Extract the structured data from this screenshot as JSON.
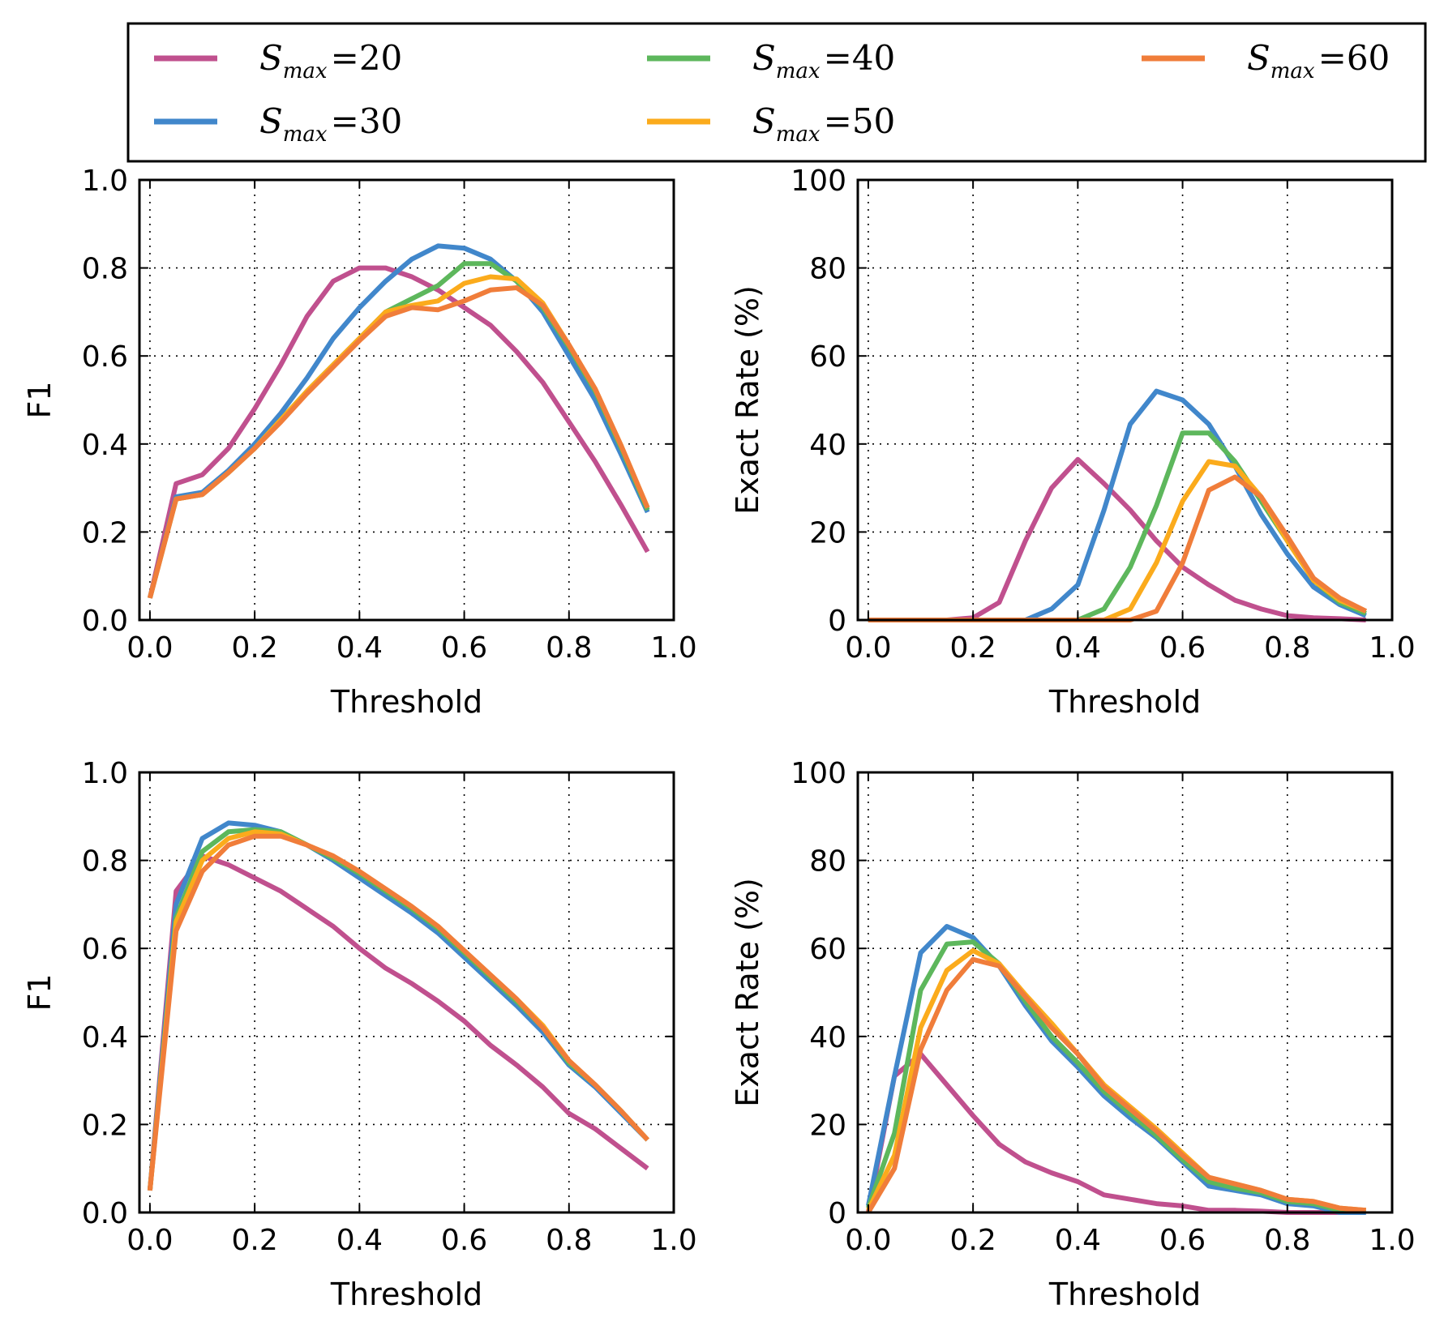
{
  "legend": {
    "items": [
      {
        "symbol": "S",
        "sub": "max",
        "value": "20",
        "color": "#c0508e"
      },
      {
        "symbol": "S",
        "sub": "max",
        "value": "30",
        "color": "#4187cb"
      },
      {
        "symbol": "S",
        "sub": "max",
        "value": "40",
        "color": "#5db75c"
      },
      {
        "symbol": "S",
        "sub": "max",
        "value": "50",
        "color": "#fbab1c"
      },
      {
        "symbol": "S",
        "sub": "max",
        "value": "60",
        "color": "#f07d3a"
      }
    ]
  },
  "chart_data": [
    {
      "type": "line",
      "xlabel": "Threshold",
      "ylabel": "F1",
      "xlim": [
        -0.02,
        1.0
      ],
      "ylim": [
        0.0,
        1.0
      ],
      "xticks": [
        "0.0",
        "0.2",
        "0.4",
        "0.6",
        "0.8",
        "1.0"
      ],
      "yticks": [
        "0.0",
        "0.2",
        "0.4",
        "0.6",
        "0.8",
        "1.0"
      ],
      "grid": true,
      "x": [
        0.0,
        0.05,
        0.1,
        0.15,
        0.2,
        0.25,
        0.3,
        0.35,
        0.4,
        0.45,
        0.5,
        0.55,
        0.6,
        0.65,
        0.7,
        0.75,
        0.8,
        0.85,
        0.9,
        0.95
      ],
      "series": [
        {
          "name": "S_max=20",
          "values": [
            0.05,
            0.31,
            0.33,
            0.39,
            0.48,
            0.58,
            0.69,
            0.77,
            0.8,
            0.8,
            0.78,
            0.75,
            0.71,
            0.67,
            0.61,
            0.54,
            0.45,
            0.36,
            0.26,
            0.155
          ]
        },
        {
          "name": "S_max=30",
          "values": [
            0.05,
            0.28,
            0.29,
            0.34,
            0.4,
            0.47,
            0.55,
            0.64,
            0.71,
            0.77,
            0.82,
            0.85,
            0.845,
            0.82,
            0.77,
            0.7,
            0.6,
            0.5,
            0.375,
            0.245
          ]
        },
        {
          "name": "S_max=40",
          "values": [
            0.05,
            0.275,
            0.285,
            0.335,
            0.39,
            0.455,
            0.52,
            0.58,
            0.64,
            0.7,
            0.73,
            0.76,
            0.81,
            0.81,
            0.77,
            0.71,
            0.62,
            0.52,
            0.39,
            0.25
          ]
        },
        {
          "name": "S_max=50",
          "values": [
            0.05,
            0.275,
            0.285,
            0.335,
            0.39,
            0.455,
            0.52,
            0.58,
            0.64,
            0.7,
            0.715,
            0.725,
            0.765,
            0.78,
            0.775,
            0.72,
            0.625,
            0.525,
            0.395,
            0.255
          ]
        },
        {
          "name": "S_max=60",
          "values": [
            0.05,
            0.275,
            0.285,
            0.335,
            0.39,
            0.45,
            0.515,
            0.575,
            0.635,
            0.69,
            0.71,
            0.705,
            0.725,
            0.75,
            0.755,
            0.715,
            0.625,
            0.525,
            0.395,
            0.255
          ]
        }
      ]
    },
    {
      "type": "line",
      "xlabel": "Threshold",
      "ylabel": "Exact Rate (%)",
      "xlim": [
        -0.02,
        1.0
      ],
      "ylim": [
        0,
        100
      ],
      "xticks": [
        "0.0",
        "0.2",
        "0.4",
        "0.6",
        "0.8",
        "1.0"
      ],
      "yticks": [
        "0",
        "20",
        "40",
        "60",
        "80",
        "100"
      ],
      "grid": true,
      "x": [
        0.0,
        0.05,
        0.1,
        0.15,
        0.2,
        0.25,
        0.3,
        0.35,
        0.4,
        0.45,
        0.5,
        0.55,
        0.6,
        0.65,
        0.7,
        0.75,
        0.8,
        0.85,
        0.9,
        0.95
      ],
      "series": [
        {
          "name": "S_max=20",
          "values": [
            0,
            0,
            0,
            0,
            0.5,
            4,
            18,
            30,
            36.5,
            31,
            25,
            18,
            12,
            8,
            4.5,
            2.5,
            1,
            0.5,
            0.3,
            0
          ]
        },
        {
          "name": "S_max=30",
          "values": [
            0,
            0,
            0,
            0,
            0,
            0,
            0,
            2.5,
            8,
            25,
            44.5,
            52,
            50,
            44.5,
            35,
            24,
            15,
            7.5,
            3.5,
            1
          ]
        },
        {
          "name": "S_max=40",
          "values": [
            0,
            0,
            0,
            0,
            0,
            0,
            0,
            0,
            0,
            2.5,
            12,
            26,
            42.5,
            42.5,
            36,
            27,
            18,
            9,
            4,
            1.5
          ]
        },
        {
          "name": "S_max=50",
          "values": [
            0,
            0,
            0,
            0,
            0,
            0,
            0,
            0,
            0,
            0,
            2.5,
            13,
            27,
            36,
            35,
            28,
            18,
            9,
            4.5,
            2
          ]
        },
        {
          "name": "S_max=60",
          "values": [
            0,
            0,
            0,
            0,
            0,
            0,
            0,
            0,
            0,
            0,
            0,
            2,
            13,
            29.5,
            32.5,
            28,
            19,
            9.5,
            5,
            2
          ]
        }
      ]
    },
    {
      "type": "line",
      "xlabel": "Threshold",
      "ylabel": "F1",
      "xlim": [
        -0.02,
        1.0
      ],
      "ylim": [
        0.0,
        1.0
      ],
      "xticks": [
        "0.0",
        "0.2",
        "0.4",
        "0.6",
        "0.8",
        "1.0"
      ],
      "yticks": [
        "0.0",
        "0.2",
        "0.4",
        "0.6",
        "0.8",
        "1.0"
      ],
      "grid": true,
      "x": [
        0.0,
        0.05,
        0.1,
        0.15,
        0.2,
        0.25,
        0.3,
        0.35,
        0.4,
        0.45,
        0.5,
        0.55,
        0.6,
        0.65,
        0.7,
        0.75,
        0.8,
        0.85,
        0.9,
        0.95
      ],
      "series": [
        {
          "name": "S_max=20",
          "values": [
            0.05,
            0.73,
            0.81,
            0.79,
            0.76,
            0.73,
            0.69,
            0.65,
            0.6,
            0.555,
            0.52,
            0.48,
            0.435,
            0.38,
            0.335,
            0.285,
            0.225,
            0.19,
            0.145,
            0.1
          ]
        },
        {
          "name": "S_max=30",
          "values": [
            0.05,
            0.7,
            0.85,
            0.885,
            0.88,
            0.865,
            0.835,
            0.8,
            0.76,
            0.72,
            0.68,
            0.635,
            0.58,
            0.525,
            0.47,
            0.41,
            0.335,
            0.285,
            0.225,
            0.165
          ]
        },
        {
          "name": "S_max=40",
          "values": [
            0.05,
            0.67,
            0.82,
            0.865,
            0.87,
            0.865,
            0.835,
            0.805,
            0.77,
            0.73,
            0.69,
            0.645,
            0.59,
            0.535,
            0.48,
            0.42,
            0.34,
            0.29,
            0.23,
            0.165
          ]
        },
        {
          "name": "S_max=50",
          "values": [
            0.05,
            0.66,
            0.8,
            0.85,
            0.865,
            0.86,
            0.835,
            0.81,
            0.775,
            0.735,
            0.695,
            0.65,
            0.595,
            0.54,
            0.485,
            0.425,
            0.345,
            0.29,
            0.23,
            0.165
          ]
        },
        {
          "name": "S_max=60",
          "values": [
            0.05,
            0.64,
            0.775,
            0.835,
            0.855,
            0.855,
            0.835,
            0.81,
            0.775,
            0.735,
            0.695,
            0.65,
            0.595,
            0.54,
            0.485,
            0.42,
            0.345,
            0.29,
            0.23,
            0.165
          ]
        }
      ]
    },
    {
      "type": "line",
      "xlabel": "Threshold",
      "ylabel": "Exact Rate (%)",
      "xlim": [
        -0.02,
        1.0
      ],
      "ylim": [
        0,
        100
      ],
      "xticks": [
        "0.0",
        "0.2",
        "0.4",
        "0.6",
        "0.8",
        "1.0"
      ],
      "yticks": [
        "0",
        "20",
        "40",
        "60",
        "80",
        "100"
      ],
      "grid": true,
      "x": [
        0.0,
        0.05,
        0.1,
        0.15,
        0.2,
        0.25,
        0.3,
        0.35,
        0.4,
        0.45,
        0.5,
        0.55,
        0.6,
        0.65,
        0.7,
        0.75,
        0.8,
        0.85,
        0.9,
        0.95
      ],
      "series": [
        {
          "name": "S_max=20",
          "values": [
            0,
            31,
            36,
            29,
            22,
            15.5,
            11.5,
            9,
            7,
            4,
            3,
            2,
            1.5,
            0.5,
            0.5,
            0.3,
            0,
            0,
            0,
            0
          ]
        },
        {
          "name": "S_max=30",
          "values": [
            1.5,
            31,
            59,
            65,
            62.5,
            56,
            47,
            39,
            33,
            26.5,
            21.5,
            17,
            11.5,
            6,
            5,
            4,
            2,
            1.5,
            0,
            0
          ]
        },
        {
          "name": "S_max=40",
          "values": [
            1,
            18,
            50.5,
            61,
            61.5,
            56.5,
            48,
            40,
            34,
            27.5,
            22.5,
            17.5,
            12,
            7,
            5.5,
            4.5,
            2.5,
            2,
            0.5,
            0.5
          ]
        },
        {
          "name": "S_max=50",
          "values": [
            0.5,
            13,
            42,
            55,
            59.5,
            56.5,
            49.5,
            43,
            36,
            29,
            24,
            19,
            13.5,
            8,
            6.5,
            5,
            3,
            2.5,
            1,
            0.5
          ]
        },
        {
          "name": "S_max=60",
          "values": [
            0,
            10,
            37,
            50.5,
            57.5,
            56,
            49,
            42,
            36,
            28.5,
            23.5,
            18.5,
            13,
            8,
            6.5,
            5,
            3,
            2.5,
            1,
            0.5
          ]
        }
      ]
    }
  ]
}
